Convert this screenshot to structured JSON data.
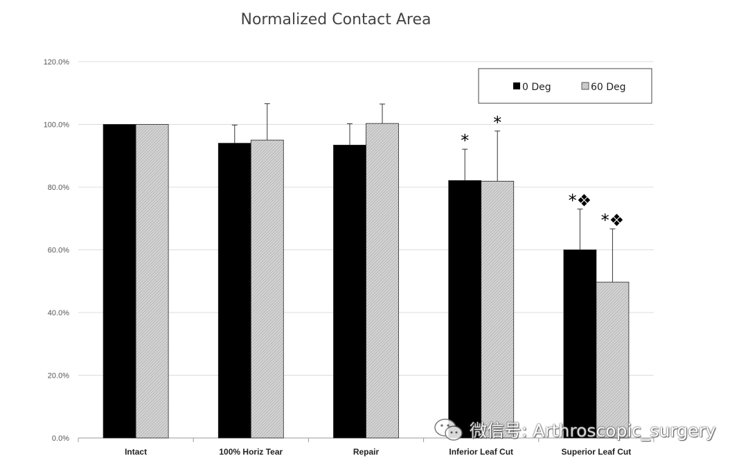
{
  "chart_data": {
    "type": "bar",
    "title": "Normalized Contact Area",
    "xlabel": "",
    "ylabel": "",
    "categories": [
      "Intact",
      "100% Horiz Tear",
      "Repair",
      "Inferior Leaf Cut",
      "Superior Leaf Cut"
    ],
    "series": [
      {
        "name": "0 Deg",
        "color": "#000000",
        "values": [
          100.0,
          94.0,
          93.4,
          82.1,
          60.0
        ],
        "errors": [
          0.0,
          5.8,
          6.8,
          10.0,
          13.0
        ]
      },
      {
        "name": "60 Deg",
        "color": "#c8c8c8",
        "pattern": "diagonal-hatch",
        "values": [
          100.0,
          95.0,
          100.3,
          81.9,
          49.7
        ],
        "errors": [
          0.0,
          11.6,
          6.2,
          16.0,
          17.0
        ]
      }
    ],
    "ylim": [
      0,
      120
    ],
    "yticks": [
      "0.0%",
      "20.0%",
      "40.0%",
      "60.0%",
      "80.0%",
      "100.0%",
      "120.0%"
    ],
    "ytick_values": [
      0,
      20,
      40,
      60,
      80,
      100,
      120
    ],
    "grid": true,
    "legend_position": "top-right",
    "annotations": [
      {
        "category_index": 3,
        "series_index": 0,
        "text": "*"
      },
      {
        "category_index": 3,
        "series_index": 1,
        "text": "*"
      },
      {
        "category_index": 4,
        "series_index": 0,
        "text": "*❖"
      },
      {
        "category_index": 4,
        "series_index": 1,
        "text": "*❖"
      }
    ]
  },
  "watermark": {
    "text": "微信号: Arthroscopic_surgery",
    "icon": "wechat-icon"
  }
}
